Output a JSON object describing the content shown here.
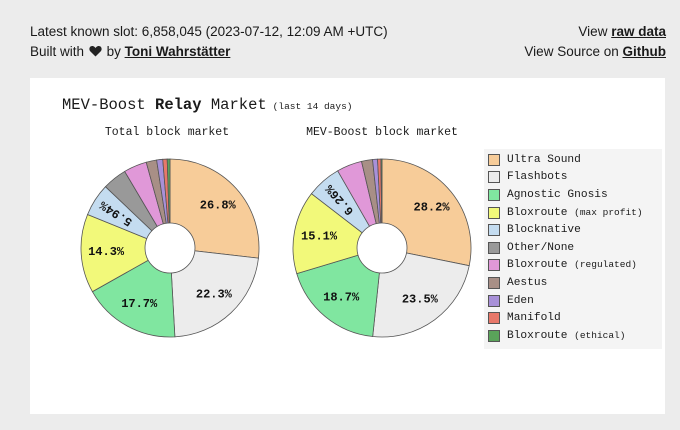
{
  "header": {
    "latest_slot": "Latest known slot: 6,858,045 (2023-07-12, 12:09 AM +UTC)",
    "built_with": "Built with",
    "by": "by",
    "author": "Toni Wahrstätter",
    "view_prefix": "View",
    "raw_data": "raw data",
    "source_prefix": "View Source on",
    "github": "Github"
  },
  "chart_data": {
    "type": "pie",
    "title_prefix": "MEV-Boost",
    "title_bold": "Relay",
    "title_suffix": "Market",
    "subtitle": "(last 14 days)",
    "legend_position": "right",
    "categories": [
      "Ultra Sound",
      "Flashbots",
      "Agnostic Gnosis",
      "Bloxroute (max profit)",
      "Blocknative",
      "Other/None",
      "Bloxroute (regulated)",
      "Aestus",
      "Eden",
      "Manifold",
      "Bloxroute (ethical)"
    ],
    "colors": [
      "#f7cc99",
      "#ececec",
      "#80e6a0",
      "#f2f97a",
      "#c4dcf0",
      "#999999",
      "#e098d8",
      "#a88f86",
      "#a890d8",
      "#e8786a",
      "#5aa35a"
    ],
    "series": [
      {
        "name": "Total block market",
        "values": [
          26.8,
          22.3,
          17.7,
          14.3,
          5.94,
          4.4,
          4.2,
          1.9,
          1.1,
          0.8,
          0.5
        ],
        "labels": [
          "26.8%",
          "22.3%",
          "17.7%",
          "14.3%",
          "5.94%",
          "",
          "",
          "",
          "",
          "",
          ""
        ]
      },
      {
        "name": "MEV-Boost block market",
        "values": [
          28.2,
          23.5,
          18.7,
          15.1,
          6.26,
          0,
          4.6,
          2.0,
          0.9,
          0.6,
          0.2
        ],
        "labels": [
          "28.2%",
          "23.5%",
          "18.7%",
          "15.1%",
          "6.26%",
          "",
          "",
          "",
          "",
          "",
          ""
        ]
      }
    ]
  }
}
